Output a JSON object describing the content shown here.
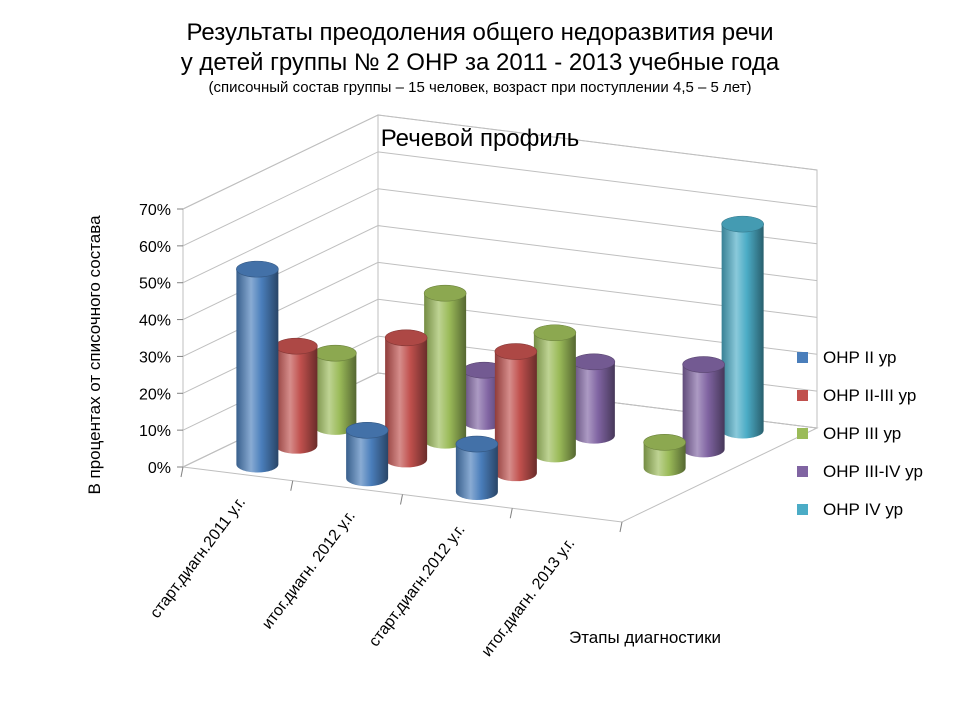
{
  "slide": {
    "title_line1": "Результаты преодоления общего недоразвития речи",
    "title_line2": "у детей группы № 2 ОНР за 2011 - 2013 учебные года",
    "subtitle": "(списочный состав группы – 15 человек, возраст при поступлении  4,5 – 5 лет)"
  },
  "chart_data": {
    "type": "bar",
    "subtype": "3d-cylinder",
    "title": "Речевой профиль",
    "xlabel": "Этапы диагностики",
    "ylabel": "В процентах  от списочного состава",
    "categories": [
      "старт.диагн.2011 у.г.",
      "итог.диагн. 2012 у.г.",
      "старт.диагн.2012 у.г.",
      "итог.диагн. 2013 у.г."
    ],
    "yticks": [
      "0%",
      "10%",
      "20%",
      "30%",
      "40%",
      "50%",
      "60%",
      "70%"
    ],
    "ylim": [
      0,
      70
    ],
    "grid": true,
    "legend_position": "right",
    "series": [
      {
        "name": "ОНР II ур",
        "color": "#4a7ebb",
        "values": [
          53,
          13,
          13,
          0
        ]
      },
      {
        "name": "ОНР II-III ур",
        "color": "#c0504d",
        "values": [
          27,
          33,
          33,
          0
        ]
      },
      {
        "name": "ОНР III ур",
        "color": "#9bbb59",
        "values": [
          20,
          40,
          33,
          7
        ]
      },
      {
        "name": "ОНР III-IV ур",
        "color": "#8064a2",
        "values": [
          0,
          14,
          20,
          23
        ]
      },
      {
        "name": "ОНР IV ур",
        "color": "#4bacc6",
        "values": [
          0,
          0,
          0,
          56
        ]
      }
    ]
  }
}
